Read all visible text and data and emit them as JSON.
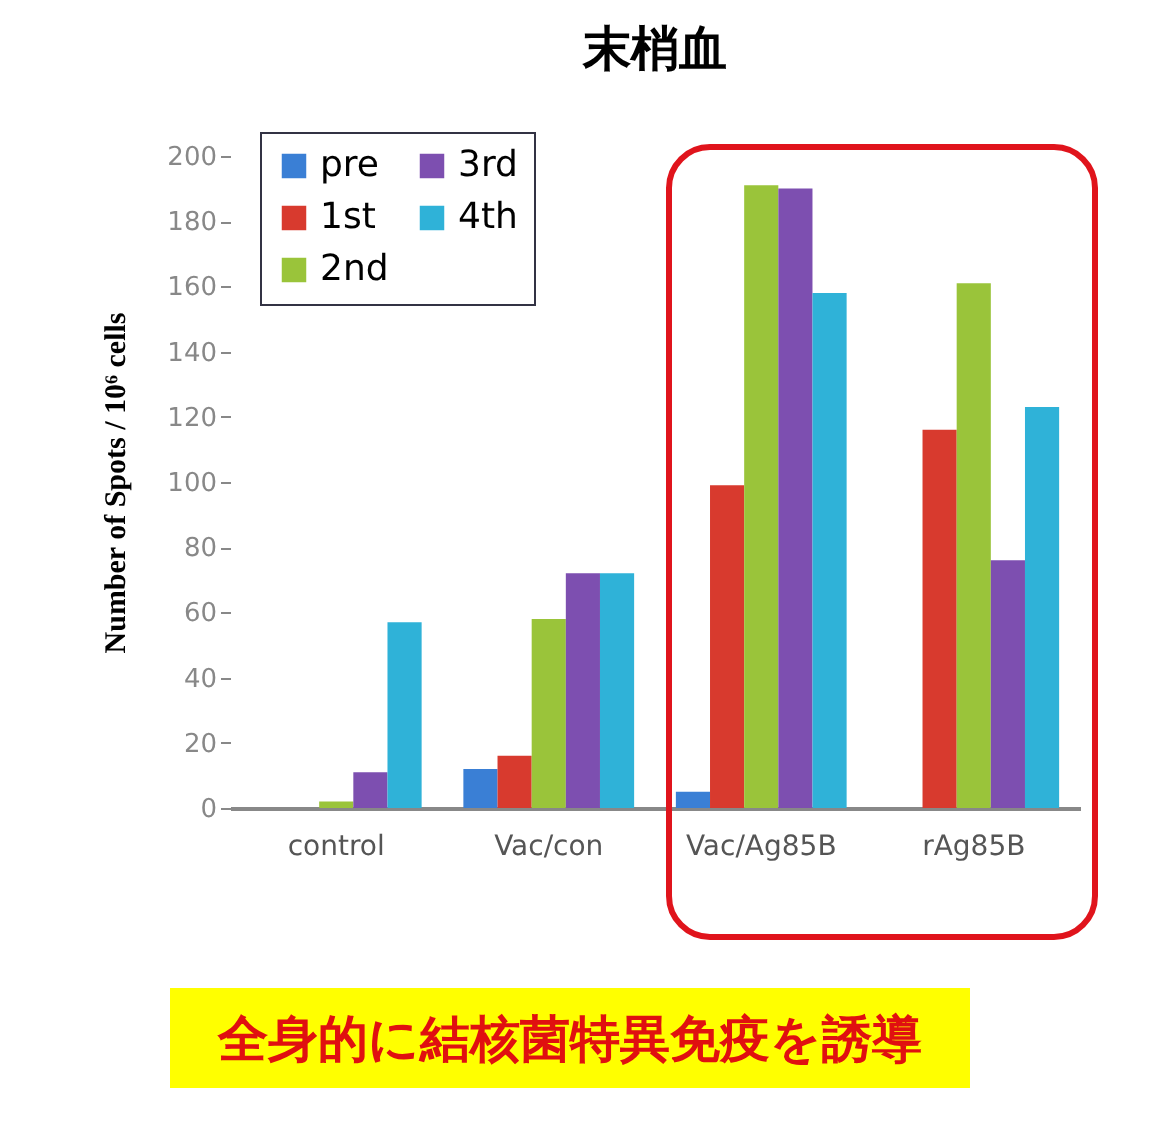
{
  "chart_data": {
    "type": "bar",
    "title": "末梢血",
    "ylabel": "Number of Spots / 10⁶ cells",
    "categories": [
      "control",
      "Vac/con",
      "Vac/Ag85B",
      "rAg85B"
    ],
    "series": [
      {
        "name": "pre",
        "color": "#3a7fd5",
        "values": [
          0,
          12,
          5,
          0
        ]
      },
      {
        "name": "1st",
        "color": "#d83a2e",
        "values": [
          0,
          16,
          99,
          116
        ]
      },
      {
        "name": "2nd",
        "color": "#9ac43a",
        "values": [
          2,
          58,
          191,
          161
        ]
      },
      {
        "name": "3rd",
        "color": "#7d4fb0",
        "values": [
          11,
          72,
          190,
          76
        ]
      },
      {
        "name": "4th",
        "color": "#2fb2d8",
        "values": [
          57,
          72,
          158,
          123
        ]
      }
    ],
    "ylim": [
      0,
      200
    ],
    "yticks": [
      0,
      20,
      40,
      60,
      80,
      100,
      120,
      140,
      160,
      180,
      200
    ],
    "grid": false,
    "legend": "top left",
    "annotations": [
      "全身的に結核菌特異免疫を誘導"
    ]
  }
}
